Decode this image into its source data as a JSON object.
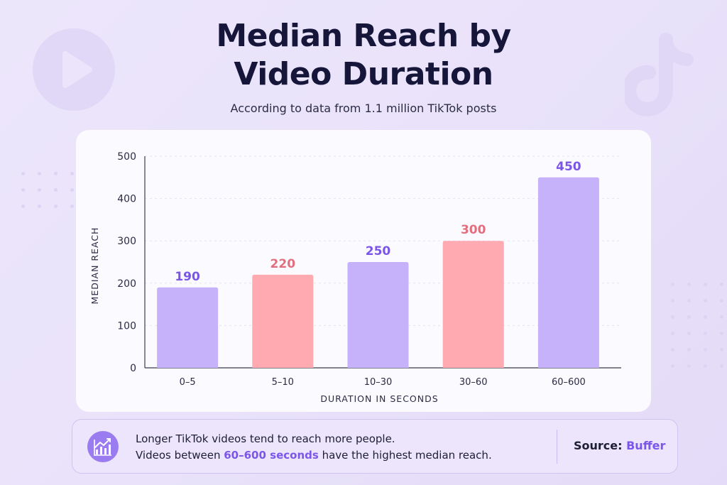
{
  "title_line1": "Median Reach by",
  "title_line2": "Video Duration",
  "subtitle": "According to data from 1.1 million TikTok posts",
  "chart_data": {
    "type": "bar",
    "categories": [
      "0–5",
      "5–10",
      "10–30",
      "30–60",
      "60–600"
    ],
    "values": [
      190,
      220,
      250,
      300,
      450
    ],
    "value_labels": [
      "190",
      "220",
      "250",
      "300",
      "450"
    ],
    "bar_colors": [
      "#c5b2fb",
      "#ffa9b0",
      "#c5b2fb",
      "#ffa9b0",
      "#c5b2fb"
    ],
    "label_colors": [
      "#7a55e8",
      "#e0707f",
      "#7a55e8",
      "#e0707f",
      "#7a55e8"
    ],
    "xlabel": "DURATION IN SECONDS",
    "ylabel": "MEDIAN REACH",
    "ylim": [
      0,
      500
    ],
    "yticks": [
      0,
      100,
      200,
      300,
      400,
      500
    ],
    "grid": true
  },
  "callout": {
    "line1": "Longer TikTok videos tend to reach more people.",
    "line2_prefix": "Videos between ",
    "line2_highlight": "60–600 seconds",
    "line2_suffix": " have the highest median reach.",
    "icon": "trend-chart-icon"
  },
  "source": {
    "label": "Source: ",
    "name": "Buffer"
  },
  "colors": {
    "title": "#16163a",
    "accent_purple": "#7b56ea",
    "background": "#ebe4fa"
  }
}
